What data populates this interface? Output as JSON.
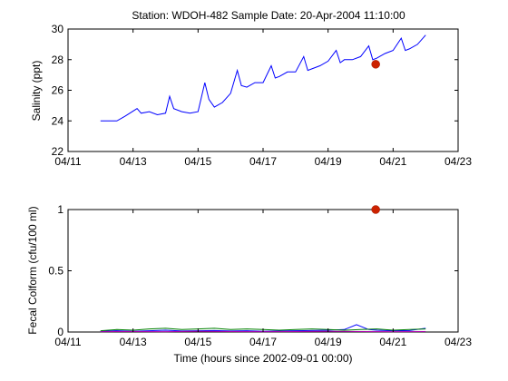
{
  "figure": {
    "title": "Station: WDOH-482  Sample Date: 20-Apr-2004 11:10:00"
  },
  "chart_data": [
    {
      "type": "line",
      "ylabel": "Salinity (ppt)",
      "xlabel": "",
      "xlim": [
        "2004-04-11",
        "2004-04-23"
      ],
      "ylim": [
        22,
        30
      ],
      "x_ticks": [
        "04/11",
        "04/13",
        "04/15",
        "04/17",
        "04/19",
        "04/21",
        "04/23"
      ],
      "y_ticks": [
        "22",
        "24",
        "26",
        "28",
        "30"
      ],
      "grid": false,
      "series": [
        {
          "color": "#0000ff",
          "x": [
            "2004-04-12 00:00",
            "2004-04-12 12:00",
            "2004-04-12 18:00",
            "2004-04-13 03:00",
            "2004-04-13 06:00",
            "2004-04-13 12:00",
            "2004-04-13 18:00",
            "2004-04-14 00:00",
            "2004-04-14 03:00",
            "2004-04-14 06:00",
            "2004-04-14 12:00",
            "2004-04-14 18:00",
            "2004-04-15 00:00",
            "2004-04-15 05:00",
            "2004-04-15 08:00",
            "2004-04-15 12:00",
            "2004-04-15 18:00",
            "2004-04-16 00:00",
            "2004-04-16 05:00",
            "2004-04-16 08:00",
            "2004-04-16 12:00",
            "2004-04-16 18:00",
            "2004-04-17 00:00",
            "2004-04-17 06:00",
            "2004-04-17 09:00",
            "2004-04-17 12:00",
            "2004-04-17 18:00",
            "2004-04-18 00:00",
            "2004-04-18 06:00",
            "2004-04-18 09:00",
            "2004-04-18 12:00",
            "2004-04-18 18:00",
            "2004-04-19 00:00",
            "2004-04-19 06:00",
            "2004-04-19 09:00",
            "2004-04-19 12:00",
            "2004-04-19 18:00",
            "2004-04-20 00:00",
            "2004-04-20 06:00",
            "2004-04-20 09:00",
            "2004-04-20 12:00",
            "2004-04-20 18:00",
            "2004-04-21 00:00",
            "2004-04-21 06:00",
            "2004-04-21 09:00",
            "2004-04-21 12:00",
            "2004-04-21 18:00",
            "2004-04-22 00:00"
          ],
          "y": [
            24.0,
            24.0,
            24.3,
            24.8,
            24.5,
            24.6,
            24.4,
            24.5,
            25.6,
            24.8,
            24.6,
            24.5,
            24.6,
            26.5,
            25.4,
            24.9,
            25.2,
            25.8,
            27.3,
            26.3,
            26.2,
            26.5,
            26.5,
            27.6,
            26.8,
            26.9,
            27.2,
            27.2,
            28.2,
            27.3,
            27.4,
            27.6,
            27.9,
            28.6,
            27.8,
            28.0,
            28.0,
            28.2,
            28.9,
            28.0,
            28.1,
            28.4,
            28.6,
            29.4,
            28.6,
            28.7,
            29.0,
            29.6
          ]
        }
      ],
      "sample": {
        "x": "2004-04-20 11:10",
        "y": 27.7,
        "color": "#cc2200"
      }
    },
    {
      "type": "line",
      "ylabel": "Fecal Colform (cfu/100 ml)",
      "xlabel": "Time (hours since 2002-09-01 00:00)",
      "xlim": [
        "2004-04-11",
        "2004-04-23"
      ],
      "ylim": [
        0,
        1
      ],
      "x_ticks": [
        "04/11",
        "04/13",
        "04/15",
        "04/17",
        "04/19",
        "04/21",
        "04/23"
      ],
      "y_ticks": [
        "0",
        "0.5",
        "1"
      ],
      "grid": false,
      "series": [
        {
          "color": "#0000ff",
          "x": [
            "2004-04-12 00:00",
            "2004-04-12 12:00",
            "2004-04-13 00:00",
            "2004-04-13 12:00",
            "2004-04-14 00:00",
            "2004-04-14 12:00",
            "2004-04-15 00:00",
            "2004-04-15 12:00",
            "2004-04-16 00:00",
            "2004-04-16 12:00",
            "2004-04-17 00:00",
            "2004-04-17 12:00",
            "2004-04-18 00:00",
            "2004-04-18 12:00",
            "2004-04-19 00:00",
            "2004-04-19 12:00",
            "2004-04-19 21:00",
            "2004-04-20 06:00",
            "2004-04-20 12:00",
            "2004-04-21 00:00",
            "2004-04-21 12:00",
            "2004-04-22 00:00"
          ],
          "y": [
            0.005,
            0.01,
            0.005,
            0.01,
            0.015,
            0.008,
            0.01,
            0.012,
            0.008,
            0.01,
            0.006,
            0.008,
            0.01,
            0.012,
            0.015,
            0.02,
            0.06,
            0.02,
            0.015,
            0.01,
            0.012,
            0.03
          ]
        },
        {
          "color": "#008000",
          "x": [
            "2004-04-12 00:00",
            "2004-04-12 12:00",
            "2004-04-13 00:00",
            "2004-04-13 12:00",
            "2004-04-14 00:00",
            "2004-04-14 12:00",
            "2004-04-15 00:00",
            "2004-04-15 12:00",
            "2004-04-16 00:00",
            "2004-04-16 12:00",
            "2004-04-17 00:00",
            "2004-04-17 12:00",
            "2004-04-18 00:00",
            "2004-04-18 12:00",
            "2004-04-19 00:00",
            "2004-04-19 12:00",
            "2004-04-20 00:00",
            "2004-04-20 12:00",
            "2004-04-21 00:00",
            "2004-04-21 12:00",
            "2004-04-22 00:00"
          ],
          "y": [
            0.01,
            0.02,
            0.015,
            0.025,
            0.03,
            0.02,
            0.025,
            0.03,
            0.02,
            0.025,
            0.02,
            0.015,
            0.02,
            0.025,
            0.02,
            0.015,
            0.02,
            0.025,
            0.015,
            0.02,
            0.025
          ]
        },
        {
          "color": "#aa00aa",
          "x": [
            "2004-04-12 00:00",
            "2004-04-13 00:00",
            "2004-04-14 00:00",
            "2004-04-15 00:00",
            "2004-04-16 00:00",
            "2004-04-17 00:00",
            "2004-04-18 00:00",
            "2004-04-19 00:00",
            "2004-04-20 00:00",
            "2004-04-21 00:00",
            "2004-04-22 00:00"
          ],
          "y": [
            0.003,
            0.004,
            0.003,
            0.005,
            0.004,
            0.003,
            0.004,
            0.005,
            0.004,
            0.003,
            0.004
          ]
        }
      ],
      "sample": {
        "x": "2004-04-20 11:10",
        "y": 1.0,
        "color": "#cc2200"
      }
    }
  ]
}
